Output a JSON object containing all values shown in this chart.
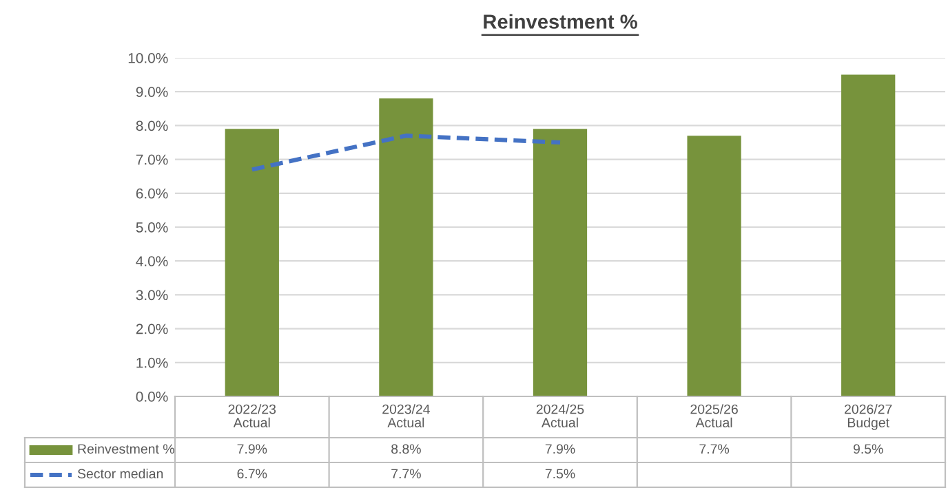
{
  "chart_data": {
    "type": "bar",
    "title": "Reinvestment %",
    "categories": [
      "2022/23\nActual",
      "2023/24\nActual",
      "2024/25\nActual",
      "2025/26\nActual",
      "2026/27\nBudget"
    ],
    "series": [
      {
        "name": "Reinvestment %",
        "color": "#77933c",
        "values": [
          7.9,
          8.8,
          7.9,
          7.7,
          9.5
        ],
        "value_labels": [
          "7.9%",
          "8.8%",
          "7.9%",
          "7.7%",
          "9.5%"
        ]
      },
      {
        "name": "Sector median",
        "type": "line",
        "color": "#4472c4",
        "line_style": "dashed",
        "values": [
          6.7,
          7.7,
          7.5,
          null,
          null
        ],
        "value_labels": [
          "6.7%",
          "7.7%",
          "7.5%",
          null,
          null
        ]
      }
    ],
    "ylim": [
      0,
      10
    ],
    "yticks": [
      {
        "value": 0,
        "label": "0.0%"
      },
      {
        "value": 1,
        "label": "1.0%"
      },
      {
        "value": 2,
        "label": "2.0%"
      },
      {
        "value": 3,
        "label": "3.0%"
      },
      {
        "value": 4,
        "label": "4.0%"
      },
      {
        "value": 5,
        "label": "5.0%"
      },
      {
        "value": 6,
        "label": "6.0%"
      },
      {
        "value": 7,
        "label": "7.0%"
      },
      {
        "value": 8,
        "label": "8.0%"
      },
      {
        "value": 9,
        "label": "9.0%"
      },
      {
        "value": 10,
        "label": "10.0%"
      }
    ],
    "grid": "y",
    "legend": "bottom"
  }
}
